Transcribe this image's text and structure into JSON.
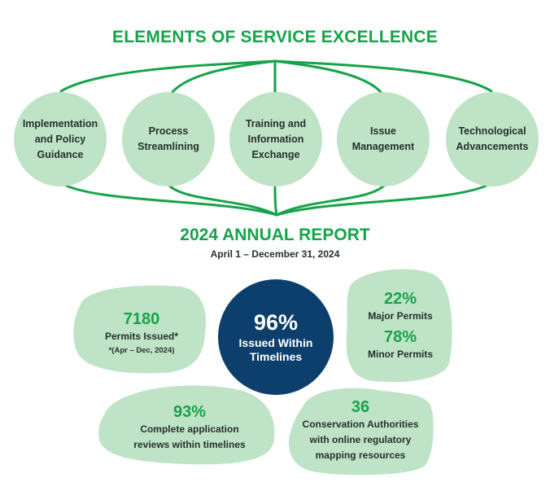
{
  "header": {
    "title": "ELEMENTS OF SERVICE EXCELLENCE"
  },
  "elements": [
    {
      "label": "Implementation\nand Policy\nGuidance"
    },
    {
      "label": "Process\nStreamlining"
    },
    {
      "label": "Training and\nInformation\nExchange"
    },
    {
      "label": "Issue\nManagement"
    },
    {
      "label": "Technological\nAdvancements"
    }
  ],
  "report": {
    "title": "2024 ANNUAL REPORT",
    "dates": "April 1 – December 31, 2024"
  },
  "stats": {
    "permits": {
      "value": "7180",
      "label": "Permits Issued*",
      "note": "*(Apr – Dec, 2024)"
    },
    "timelines": {
      "value": "96%",
      "label": "Issued Within\nTimelines"
    },
    "major": {
      "value": "22%",
      "label": "Major Permits"
    },
    "minor": {
      "value": "78%",
      "label": "Minor Permits"
    },
    "reviews": {
      "value": "93%",
      "label": "Complete application\nreviews within timelines"
    },
    "conservation": {
      "value": "36",
      "label": "Conservation Authorities\nwith online regulatory\nmapping resources"
    }
  },
  "colors": {
    "green": "#17a34a",
    "light_green": "#bfe3c6",
    "navy": "#0c3f6b",
    "text": "#26302b"
  }
}
